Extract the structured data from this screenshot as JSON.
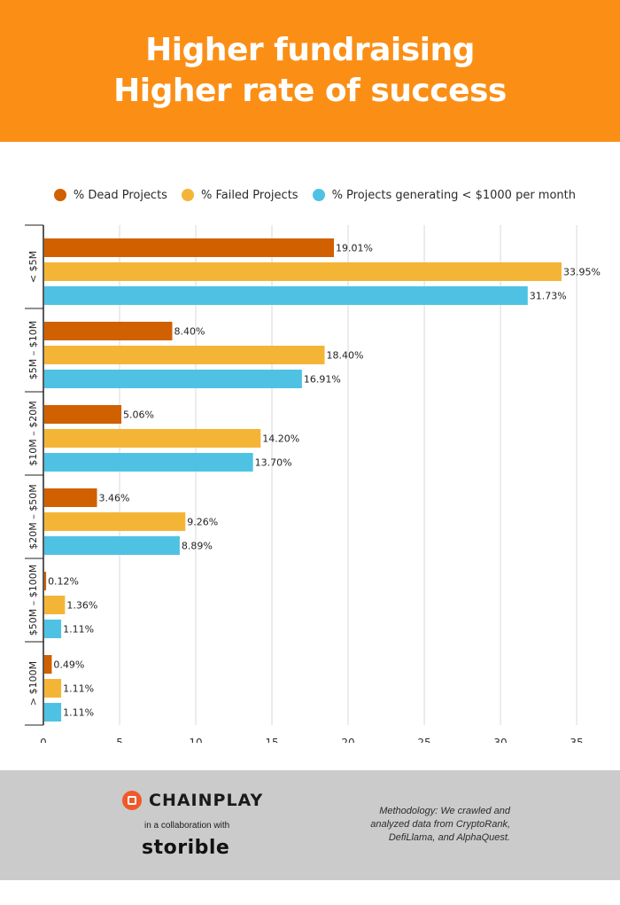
{
  "header": {
    "title_line1": "Higher fundraising",
    "title_line2": "Higher rate of success"
  },
  "colors": {
    "header_bg": "#fb8f16",
    "dead": "#d06000",
    "failed": "#f4b537",
    "low_revenue": "#4fc2e4",
    "footer_bg": "#cbcbcb"
  },
  "chart_data": {
    "type": "bar",
    "orientation": "horizontal",
    "categories": [
      "< $5M",
      "$5M – $10M",
      "$10M – $20M",
      "$20M – $50M",
      "$50M – $100M",
      "> $100M"
    ],
    "series": [
      {
        "name": "% Dead Projects",
        "color": "#d06000",
        "values": [
          19.01,
          8.4,
          5.06,
          3.46,
          0.12,
          0.49
        ],
        "labels": [
          "19.01%",
          "8.40%",
          "5.06%",
          "3.46%",
          "0.12%",
          "0.49%"
        ]
      },
      {
        "name": "% Failed Projects",
        "color": "#f4b537",
        "values": [
          33.95,
          18.4,
          14.2,
          9.26,
          1.36,
          1.11
        ],
        "labels": [
          "33.95%",
          "18.40%",
          "14.20%",
          "9.26%",
          "1.36%",
          "1.11%"
        ]
      },
      {
        "name": "% Projects generating < $1000 per month",
        "color": "#4fc2e4",
        "values": [
          31.73,
          16.91,
          13.7,
          8.89,
          1.11,
          1.11
        ],
        "labels": [
          "31.73%",
          "16.91%",
          "13.70%",
          "8.89%",
          "1.11%",
          "1.11%"
        ]
      }
    ],
    "x_ticks": [
      "0",
      "5",
      "10",
      "15",
      "20",
      "25",
      "30",
      "35"
    ],
    "xlim": [
      0,
      35
    ],
    "grid": true,
    "legend_position": "top-right"
  },
  "footer": {
    "brand": "CHAINPLAY",
    "collab_text": "in a collaboration with",
    "partner": "storible",
    "methodology_line1": "Methodology: We crawled and",
    "methodology_line2": "analyzed data from CryptoRank,",
    "methodology_line3": "DefiLlama, and AlphaQuest."
  }
}
